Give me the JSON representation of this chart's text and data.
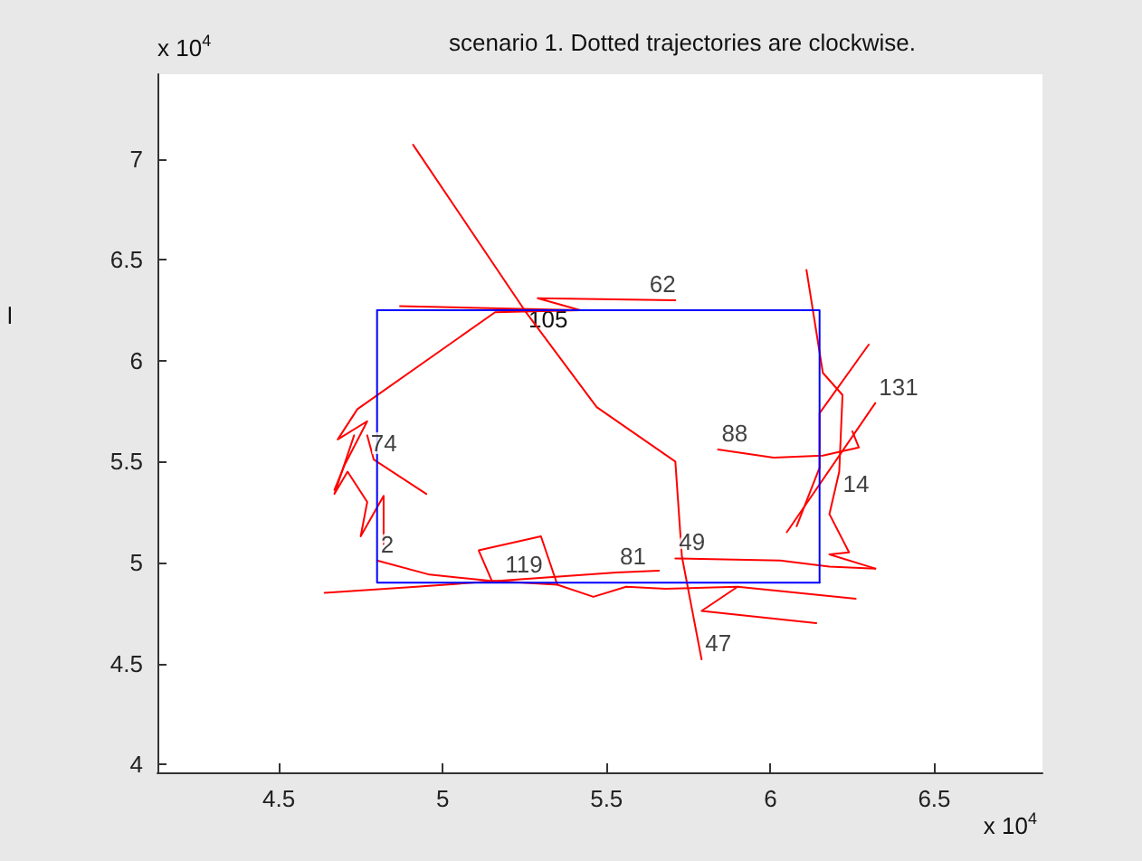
{
  "chart_data": {
    "type": "line",
    "title": "scenario 1. Dotted trajectories are clockwise.",
    "ylabel": "l",
    "marker": "none",
    "line_style": "solid",
    "xlim": [
      4.13,
      6.83
    ],
    "ylim": [
      3.96,
      7.42
    ],
    "xticks": [
      4.5,
      5,
      5.5,
      6,
      6.5
    ],
    "yticks": [
      4,
      4.5,
      5,
      5.5,
      6,
      6.5,
      7
    ],
    "series": [
      {
        "color": "#ff0000",
        "x": [
          4.91,
          5.25,
          5.47,
          5.71,
          5.73,
          5.79
        ],
        "values": [
          7.07,
          6.25,
          5.77,
          5.5,
          5.03,
          4.52
        ]
      },
      {
        "color": "#ff0000",
        "x": [
          4.87,
          5.42,
          5.16,
          4.74,
          4.68,
          4.77,
          4.7,
          4.67
        ],
        "values": [
          6.27,
          6.25,
          6.24,
          5.76,
          5.61,
          5.7,
          5.48,
          5.36
        ]
      },
      {
        "color": "#ff0000",
        "x": [
          5.42,
          5.29,
          5.71
        ],
        "values": [
          6.25,
          6.31,
          6.3
        ]
      },
      {
        "color": "#ff0000",
        "x": [
          6.11,
          6.16,
          6.22,
          6.21,
          6.18,
          6.24,
          6.18,
          6.32
        ],
        "values": [
          6.45,
          5.94,
          5.83,
          5.45,
          5.24,
          5.05,
          5.04,
          4.97
        ]
      },
      {
        "color": "#ff0000",
        "x": [
          6.32,
          6.05
        ],
        "values": [
          5.79,
          5.15
        ]
      },
      {
        "color": "#ff0000",
        "x": [
          6.3,
          6.15,
          6.15,
          6.08
        ],
        "values": [
          6.08,
          5.74,
          5.47,
          5.18
        ]
      },
      {
        "color": "#ff0000",
        "x": [
          5.84,
          6.01,
          6.16,
          6.27,
          6.25
        ],
        "values": [
          5.56,
          5.52,
          5.53,
          5.57,
          5.65
        ]
      },
      {
        "color": "#ff0000",
        "x": [
          5.71,
          6.03,
          6.18,
          6.32
        ],
        "values": [
          5.02,
          5.01,
          4.98,
          4.97
        ]
      },
      {
        "color": "#ff0000",
        "x": [
          4.64,
          4.92,
          5.18,
          5.53,
          5.66
        ],
        "values": [
          4.85,
          4.88,
          4.91,
          4.95,
          4.96
        ]
      },
      {
        "color": "#ff0000",
        "x": [
          4.8,
          4.96,
          5.14,
          5.35,
          5.46,
          5.56,
          5.68,
          5.9,
          6.26
        ],
        "values": [
          5.01,
          4.94,
          4.91,
          4.89,
          4.83,
          4.88,
          4.87,
          4.88,
          4.82
        ]
      },
      {
        "color": "#ff0000",
        "x": [
          5.15,
          5.11,
          5.3,
          5.35
        ],
        "values": [
          4.91,
          5.06,
          5.13,
          4.89
        ]
      },
      {
        "color": "#ff0000",
        "x": [
          5.9,
          5.79,
          6.14
        ],
        "values": [
          4.88,
          4.76,
          4.7
        ]
      },
      {
        "color": "#ff0000",
        "x": [
          4.82,
          4.82,
          4.75,
          4.77,
          4.71,
          4.67,
          4.73
        ],
        "values": [
          5.09,
          5.33,
          5.13,
          5.3,
          5.45,
          5.34,
          5.63
        ]
      },
      {
        "color": "#ff0000",
        "x": [
          4.77,
          4.79,
          4.95
        ],
        "values": [
          5.63,
          5.51,
          5.34
        ]
      },
      {
        "color": "#0000ff",
        "x": [
          4.8,
          6.15,
          6.15
        ],
        "values": [
          6.25,
          6.25,
          4.9
        ]
      },
      {
        "color": "#0000ff",
        "x": [
          6.15,
          4.8,
          4.8
        ],
        "values": [
          4.9,
          4.9,
          6.25
        ]
      }
    ],
    "annotations": [
      "x 10$^{4}$",
      "x 10$^{4}$",
      "105",
      {
        "text": "62",
        "x": 5.62,
        "y": 6.3
      },
      {
        "text": "88",
        "x": 5.84,
        "y": 5.56
      },
      {
        "text": "131",
        "x": 6.32,
        "y": 5.79
      },
      {
        "text": "74",
        "x": 4.77,
        "y": 5.51
      },
      {
        "text": "14",
        "x": 6.21,
        "y": 5.31
      },
      {
        "text": "2",
        "x": 4.8,
        "y": 5.01
      },
      {
        "text": "119",
        "x": 5.18,
        "y": 4.91
      },
      {
        "text": "81",
        "x": 5.53,
        "y": 4.95
      },
      {
        "text": "49",
        "x": 5.71,
        "y": 5.02
      },
      {
        "text": "47",
        "x": 5.79,
        "y": 4.52
      }
    ]
  }
}
